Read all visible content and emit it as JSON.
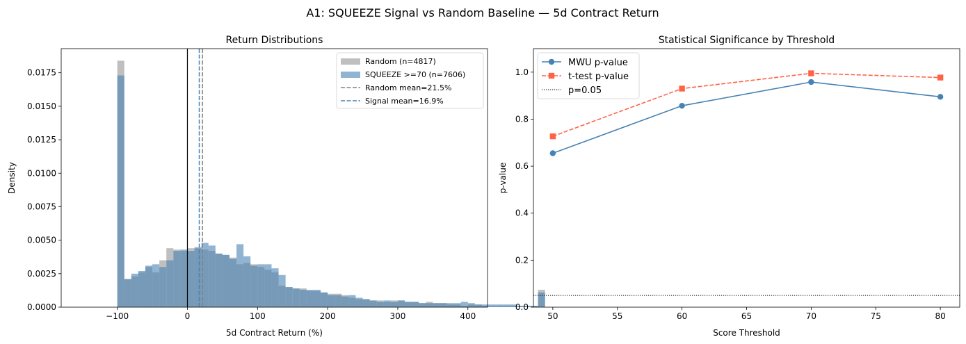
{
  "figure": {
    "suptitle": "A1: SQUEEZE Signal vs Random Baseline — 5d Contract Return"
  },
  "colors": {
    "random_fill": "#a9a9a9",
    "signal_fill": "#4682b4",
    "random_mean_line": "#808080",
    "signal_mean_line": "#4682b4",
    "mwu_line": "#4682b4",
    "ttest_line": "#ff6347",
    "axis": "#000000"
  },
  "chart_data": [
    {
      "type": "histogram",
      "title": "Return Distributions",
      "xlabel": "5d Contract Return (%)",
      "ylabel": "Density",
      "xlim": [
        -180,
        428
      ],
      "ylim": [
        0,
        0.0193
      ],
      "xticks": [
        -100,
        0,
        100,
        200,
        300,
        400
      ],
      "xtick_labels": [
        "−100",
        "0",
        "100",
        "200",
        "300",
        "400"
      ],
      "yticks": [
        0,
        0.0025,
        0.005,
        0.0075,
        0.01,
        0.0125,
        0.015,
        0.0175
      ],
      "ytick_labels": [
        "0.0000",
        "0.0025",
        "0.0050",
        "0.0075",
        "0.0100",
        "0.0125",
        "0.0150",
        "0.0175"
      ],
      "bin_start": -100,
      "bin_width": 10,
      "legend_position": "top-right",
      "series": [
        {
          "name": "Random (n=4817)",
          "values": [
            0.0184,
            0.0021,
            0.0023,
            0.0026,
            0.003,
            0.0026,
            0.0035,
            0.0044,
            0.0043,
            0.0042,
            0.0044,
            0.0045,
            0.0043,
            0.0042,
            0.004,
            0.0039,
            0.0037,
            0.0032,
            0.0033,
            0.0032,
            0.003,
            0.0028,
            0.0026,
            0.0016,
            0.0015,
            0.0014,
            0.0014,
            0.0012,
            0.0012,
            0.0011,
            0.001,
            0.001,
            0.0009,
            0.0007,
            0.0006,
            0.0006,
            0.0005,
            0.0005,
            0.0004,
            0.0005,
            0.0005,
            0.0004,
            0.0004,
            0.0003,
            0.0004,
            0.0003,
            0.0003,
            0.0002,
            0.0002,
            0.0001,
            0.0002,
            0.0002,
            0.0001,
            0.0001,
            0.0001,
            0.0001,
            0.0001,
            0.0001,
            0.0001,
            0.0001,
            0.0013
          ]
        },
        {
          "name": "SQUEEZE >=70 (n=7606)",
          "values": [
            0.0173,
            0.0021,
            0.0025,
            0.0027,
            0.0031,
            0.0032,
            0.003,
            0.0035,
            0.0042,
            0.0043,
            0.0042,
            0.0044,
            0.0048,
            0.0046,
            0.004,
            0.0039,
            0.0036,
            0.0047,
            0.0038,
            0.0031,
            0.0032,
            0.0032,
            0.0029,
            0.0024,
            0.0015,
            0.0014,
            0.0013,
            0.0013,
            0.0013,
            0.0011,
            0.0009,
            0.0009,
            0.0008,
            0.0009,
            0.0007,
            0.0006,
            0.0005,
            0.0004,
            0.0005,
            0.0004,
            0.0005,
            0.0004,
            0.0004,
            0.0003,
            0.0003,
            0.0003,
            0.0003,
            0.0003,
            0.0003,
            0.0004,
            0.0003,
            0.0002,
            0.0002,
            0.0002,
            0.0002,
            0.0002,
            0.0002,
            0.0001,
            0.0001,
            0.0001,
            0.0011
          ]
        }
      ],
      "vlines": [
        {
          "name": "Random mean=21.5%",
          "x": 21.5,
          "style": "dashed",
          "color_key": "random_mean_line"
        },
        {
          "name": "Signal mean=16.9%",
          "x": 16.9,
          "style": "dashed",
          "color_key": "signal_mean_line"
        },
        {
          "name": "",
          "x": 0,
          "style": "solid",
          "color_key": "axis"
        }
      ]
    },
    {
      "type": "line",
      "title": "Statistical Significance by Threshold",
      "xlabel": "Score Threshold",
      "ylabel": "p-value",
      "xlim": [
        48.5,
        81.5
      ],
      "ylim": [
        0,
        1.1
      ],
      "xticks": [
        50,
        55,
        60,
        65,
        70,
        75,
        80
      ],
      "xtick_labels": [
        "50",
        "55",
        "60",
        "65",
        "70",
        "75",
        "80"
      ],
      "yticks": [
        0,
        0.2,
        0.4,
        0.6,
        0.8,
        1.0
      ],
      "ytick_labels": [
        "0.0",
        "0.2",
        "0.4",
        "0.6",
        "0.8",
        "1.0"
      ],
      "x": [
        50,
        60,
        70,
        80
      ],
      "legend_position": "top-left",
      "series": [
        {
          "name": "MWU p-value",
          "values": [
            0.655,
            0.857,
            0.958,
            0.895
          ],
          "style": "solid",
          "marker": "circle",
          "color_key": "mwu_line"
        },
        {
          "name": "t-test p-value",
          "values": [
            0.727,
            0.93,
            0.995,
            0.977
          ],
          "style": "dashed",
          "marker": "square",
          "color_key": "ttest_line"
        }
      ],
      "hlines": [
        {
          "name": "p=0.05",
          "y": 0.05,
          "style": "dotted"
        }
      ]
    }
  ]
}
